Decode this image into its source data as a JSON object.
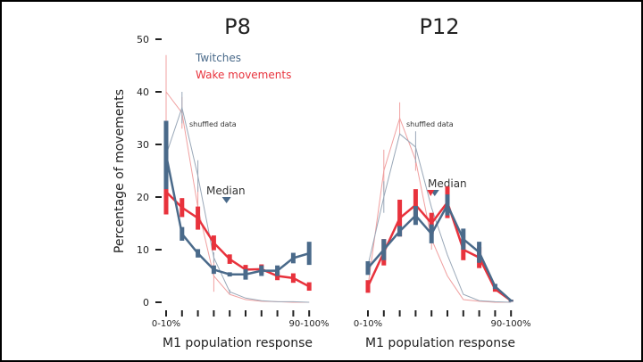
{
  "colors": {
    "twitches": "#4a6a8a",
    "wake": "#e8323c",
    "shuffled_twitches": "#9aa8b8",
    "shuffled_wake": "#f0a0a0",
    "axis": "#222222"
  },
  "chart_data": [
    {
      "type": "line",
      "title": "P8",
      "xlabel": "M1 population response",
      "ylabel": "Percentage of movements",
      "ylim": [
        0,
        50
      ],
      "yticks": [
        0,
        10,
        20,
        30,
        40,
        50
      ],
      "categories": [
        "0-10%",
        "",
        "",
        "",
        "",
        "",
        "",
        "",
        "",
        "90-100%"
      ],
      "legend": [
        "Twitches",
        "Wake movements"
      ],
      "annotations": [
        "shuffled data",
        "Median"
      ],
      "median": {
        "twitches": 3.8,
        "wake": 3.8
      },
      "series": [
        {
          "name": "Twitches",
          "values": [
            28,
            13,
            9.3,
            6.2,
            5.3,
            5.3,
            6,
            6,
            8.4,
            9.3
          ],
          "err": [
            6.5,
            1.3,
            0.8,
            0.8,
            0.4,
            1,
            1,
            1,
            1,
            2.2
          ]
        },
        {
          "name": "Wake movements",
          "values": [
            21,
            18,
            16,
            11.3,
            8.2,
            6.2,
            6.3,
            5,
            4.6,
            3
          ],
          "err": [
            4.3,
            1.8,
            2.2,
            1.4,
            0.9,
            0.9,
            0.9,
            0.8,
            0.9,
            0.8
          ]
        },
        {
          "name": "shuffled twitches",
          "values": [
            28,
            37,
            24,
            8.5,
            2,
            0.8,
            0.3,
            0.1,
            0.1,
            0
          ],
          "err": [
            1,
            3,
            3,
            1,
            0.4,
            0,
            0,
            0,
            0,
            0
          ]
        },
        {
          "name": "shuffled wake",
          "values": [
            40,
            36,
            18,
            5,
            1.5,
            0.5,
            0.2,
            0.1,
            0,
            0
          ],
          "err": [
            7,
            3,
            4,
            3,
            0,
            0,
            0,
            0,
            0,
            0
          ]
        }
      ]
    },
    {
      "type": "line",
      "title": "P12",
      "xlabel": "M1 population response",
      "ylim": [
        0,
        50
      ],
      "categories": [
        "0-10%",
        "",
        "",
        "",
        "",
        "",
        "",
        "",
        "",
        "90-100%"
      ],
      "annotations": [
        "shuffled data",
        "Median"
      ],
      "median": {
        "twitches": 4.2,
        "wake": 4.0
      },
      "series": [
        {
          "name": "Twitches",
          "values": [
            6.5,
            10,
            13.5,
            16.5,
            13,
            18.5,
            12,
            9.5,
            3,
            0.3
          ],
          "err": [
            1.3,
            2,
            1,
            1.8,
            1.8,
            2,
            2,
            2,
            0.5,
            0.2
          ]
        },
        {
          "name": "Wake movements",
          "values": [
            3,
            9.5,
            16,
            18.5,
            15,
            19,
            10,
            8.5,
            2.5,
            0.3
          ],
          "err": [
            1.2,
            2.5,
            3.5,
            3,
            2,
            3,
            2,
            2,
            0.5,
            0.2
          ]
        },
        {
          "name": "shuffled twitches",
          "values": [
            7,
            20,
            32,
            29.5,
            18,
            9,
            1.5,
            0.3,
            0.1,
            0
          ],
          "err": [
            0,
            3,
            0,
            3,
            0,
            0,
            0,
            0,
            0,
            0
          ]
        },
        {
          "name": "shuffled wake",
          "values": [
            3,
            25,
            35,
            27,
            12,
            5,
            0.5,
            0.2,
            0,
            0
          ],
          "err": [
            0,
            4,
            3,
            2,
            2,
            0,
            0,
            0,
            0,
            0
          ]
        }
      ]
    }
  ]
}
